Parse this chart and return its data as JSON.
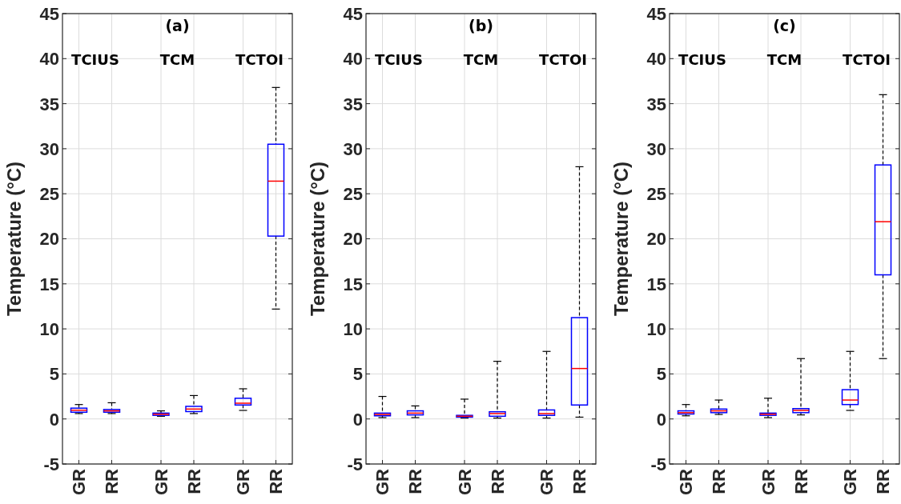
{
  "chart_data": [
    {
      "type": "box",
      "title": "(a)",
      "ylabel": "Temperature (°C)",
      "categories": [
        "GR",
        "RR",
        "GR",
        "RR",
        "GR",
        "RR"
      ],
      "annotations": [
        "TCIUS",
        "TCM",
        "TCTOI"
      ],
      "ylim": [
        -5,
        45
      ],
      "yticks": [
        -5,
        0,
        5,
        10,
        15,
        20,
        25,
        30,
        35,
        40,
        45
      ],
      "grid": true,
      "color": "#0000ff",
      "boxes": [
        {
          "low": 0.6,
          "q1": 0.75,
          "median": 0.97,
          "q3": 1.2,
          "high": 1.6
        },
        {
          "low": 0.6,
          "q1": 0.75,
          "median": 0.9,
          "q3": 1.05,
          "high": 1.8
        },
        {
          "low": 0.3,
          "q1": 0.4,
          "median": 0.53,
          "q3": 0.65,
          "high": 0.9
        },
        {
          "low": 0.6,
          "q1": 0.82,
          "median": 1.1,
          "q3": 1.4,
          "high": 2.6
        },
        {
          "low": 0.95,
          "q1": 1.55,
          "median": 1.75,
          "q3": 2.3,
          "high": 3.35
        },
        {
          "low": 12.2,
          "q1": 20.3,
          "median": 26.4,
          "q3": 30.5,
          "high": 36.8
        }
      ]
    },
    {
      "type": "box",
      "title": "(b)",
      "ylabel": "Temperature (°C)",
      "categories": [
        "GR",
        "RR",
        "GR",
        "RR",
        "GR",
        "RR"
      ],
      "annotations": [
        "TCIUS",
        "TCM",
        "TCTOI"
      ],
      "ylim": [
        -5,
        45
      ],
      "yticks": [
        -5,
        0,
        5,
        10,
        15,
        20,
        25,
        30,
        35,
        40,
        45
      ],
      "grid": true,
      "color": "#0000ff",
      "boxes": [
        {
          "low": 0.15,
          "q1": 0.35,
          "median": 0.5,
          "q3": 0.65,
          "high": 2.5
        },
        {
          "low": 0.15,
          "q1": 0.45,
          "median": 0.65,
          "q3": 0.9,
          "high": 1.45
        },
        {
          "low": 0.1,
          "q1": 0.2,
          "median": 0.3,
          "q3": 0.4,
          "high": 2.2
        },
        {
          "low": 0.1,
          "q1": 0.3,
          "median": 0.6,
          "q3": 0.8,
          "high": 6.4
        },
        {
          "low": 0.1,
          "q1": 0.4,
          "median": 0.6,
          "q3": 1.0,
          "high": 7.5
        },
        {
          "low": 0.2,
          "q1": 1.55,
          "median": 5.6,
          "q3": 11.25,
          "high": 28.0
        }
      ]
    },
    {
      "type": "box",
      "title": "(c)",
      "ylabel": "Temperature (°C)",
      "categories": [
        "GR",
        "RR",
        "GR",
        "RR",
        "GR",
        "RR"
      ],
      "annotations": [
        "TCIUS",
        "TCM",
        "TCTOI"
      ],
      "ylim": [
        -5,
        45
      ],
      "yticks": [
        -5,
        0,
        5,
        10,
        15,
        20,
        25,
        30,
        35,
        40,
        45
      ],
      "grid": true,
      "color": "#0000ff",
      "boxes": [
        {
          "low": 0.35,
          "q1": 0.55,
          "median": 0.7,
          "q3": 0.9,
          "high": 1.6
        },
        {
          "low": 0.5,
          "q1": 0.7,
          "median": 0.9,
          "q3": 1.1,
          "high": 2.1
        },
        {
          "low": 0.15,
          "q1": 0.4,
          "median": 0.53,
          "q3": 0.65,
          "high": 2.3
        },
        {
          "low": 0.45,
          "q1": 0.7,
          "median": 0.95,
          "q3": 1.15,
          "high": 6.7
        },
        {
          "low": 0.95,
          "q1": 1.6,
          "median": 2.1,
          "q3": 3.25,
          "high": 7.5
        },
        {
          "low": 6.7,
          "q1": 16.0,
          "median": 21.9,
          "q3": 28.2,
          "high": 36.0
        }
      ]
    }
  ]
}
